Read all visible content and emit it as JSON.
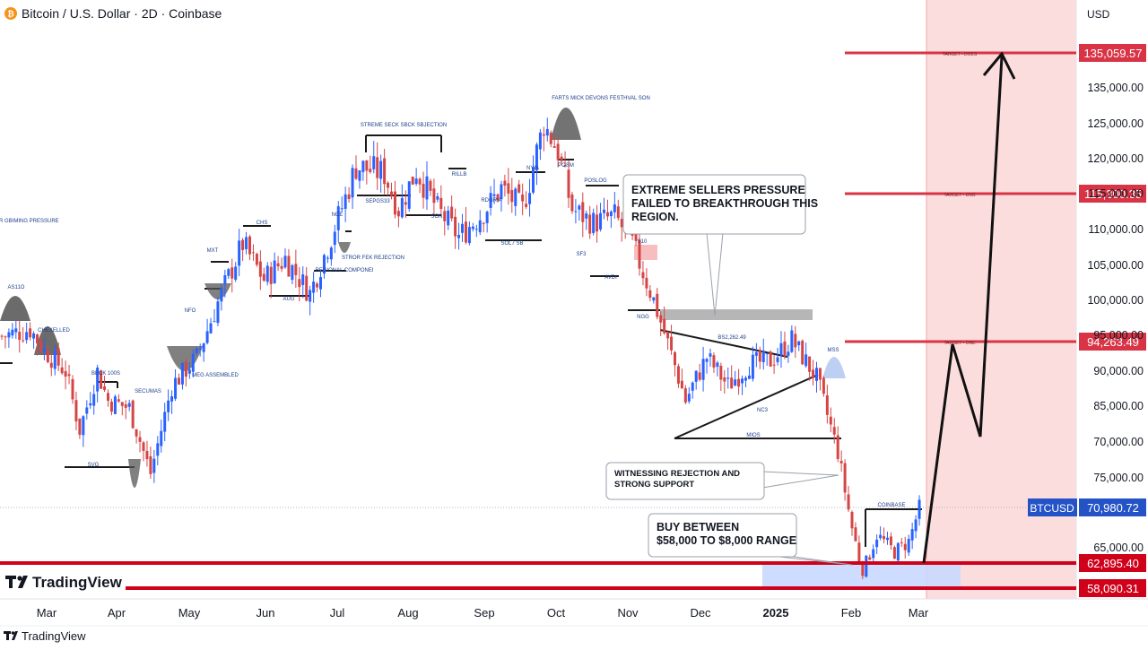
{
  "header": {
    "title": "Bitcoin / U.S. Dollar · 2D · Coinbase",
    "currency": "USD"
  },
  "branding": {
    "logo_text": "TradingView",
    "footer_text": "TradingView"
  },
  "colors": {
    "up": "#2962ff",
    "down": "#d64545",
    "resistance": "#d93445",
    "support": "#d0021b",
    "target_zone": "#fbd7d7",
    "buy_zone": "#c9d8ff",
    "price_tag": "#2453c7",
    "arrow": "#111111"
  },
  "chart_data": {
    "type": "candlestick",
    "symbol": "BTCUSD",
    "x_labels": [
      "Mar",
      "Apr",
      "May",
      "Jun",
      "Jul",
      "Aug",
      "Sep",
      "Oct",
      "Nov",
      "Dec",
      "2025",
      "Feb",
      "Mar"
    ],
    "y_ticks": [
      65000,
      70000,
      75000,
      85000,
      90000,
      95000,
      100000,
      105000,
      110000,
      115000,
      120000,
      125000,
      135000
    ],
    "last_price_label": "BTCUSD",
    "last_price": "70,980.72",
    "price_path": [
      {
        "i": 0,
        "p": 95000
      },
      {
        "i": 8,
        "p": 96000
      },
      {
        "i": 12,
        "p": 93000
      },
      {
        "i": 18,
        "p": 90000
      },
      {
        "i": 22,
        "p": 82000
      },
      {
        "i": 27,
        "p": 90000
      },
      {
        "i": 30,
        "p": 86000
      },
      {
        "i": 36,
        "p": 85000
      },
      {
        "i": 42,
        "p": 76000
      },
      {
        "i": 48,
        "p": 88000
      },
      {
        "i": 55,
        "p": 92000
      },
      {
        "i": 62,
        "p": 101000
      },
      {
        "i": 68,
        "p": 108000
      },
      {
        "i": 74,
        "p": 103000
      },
      {
        "i": 80,
        "p": 106000
      },
      {
        "i": 87,
        "p": 101000
      },
      {
        "i": 93,
        "p": 109000
      },
      {
        "i": 100,
        "p": 119000
      },
      {
        "i": 108,
        "p": 118000
      },
      {
        "i": 112,
        "p": 113000
      },
      {
        "i": 117,
        "p": 118500
      },
      {
        "i": 123,
        "p": 113000
      },
      {
        "i": 129,
        "p": 109000
      },
      {
        "i": 135,
        "p": 112000
      },
      {
        "i": 141,
        "p": 116000
      },
      {
        "i": 147,
        "p": 113000
      },
      {
        "i": 153,
        "p": 125000
      },
      {
        "i": 157,
        "p": 121000
      },
      {
        "i": 161,
        "p": 113000
      },
      {
        "i": 167,
        "p": 111000
      },
      {
        "i": 173,
        "p": 112000
      },
      {
        "i": 178,
        "p": 108000
      },
      {
        "i": 184,
        "p": 100000
      },
      {
        "i": 188,
        "p": 94000
      },
      {
        "i": 193,
        "p": 86000
      },
      {
        "i": 199,
        "p": 92000
      },
      {
        "i": 205,
        "p": 88000
      },
      {
        "i": 211,
        "p": 91000
      },
      {
        "i": 217,
        "p": 91500
      },
      {
        "i": 223,
        "p": 94500
      },
      {
        "i": 230,
        "p": 89000
      },
      {
        "i": 236,
        "p": 79000
      },
      {
        "i": 240,
        "p": 68000
      },
      {
        "i": 243,
        "p": 61500
      },
      {
        "i": 247,
        "p": 67000
      },
      {
        "i": 252,
        "p": 64500
      },
      {
        "i": 256,
        "p": 66000
      },
      {
        "i": 259,
        "p": 70980
      }
    ],
    "levels": [
      {
        "id": "target",
        "value": "135,059.57",
        "note": "TARGET - DOES"
      },
      {
        "id": "r2",
        "value": "115,300.35",
        "note": "TARGET - ENG"
      },
      {
        "id": "r1",
        "value": "94,263.49",
        "note": "TARGET - ONE"
      },
      {
        "id": "s1",
        "value": "62,895.40"
      },
      {
        "id": "s2",
        "value": "58,090.31"
      }
    ],
    "annotations": [
      {
        "id": "sellers",
        "text_lines": [
          "EXTREME SELLERS PRESSURE",
          "FAILED TO BREAKTHROUGH THIS",
          "REGION."
        ]
      },
      {
        "id": "rejection",
        "text_lines": [
          "WITNESSING REJECTION AND",
          "STRONG SUPPORT"
        ]
      },
      {
        "id": "buy",
        "text_lines": [
          "BUY BETWEEN",
          "$58,000 TO $8,000 RANGE"
        ]
      }
    ],
    "small_labels": [
      {
        "t": "GR GBIMING PRESSURE"
      },
      {
        "t": "AS11O"
      },
      {
        "t": "CHEXELLED"
      },
      {
        "t": "BECK 100S"
      },
      {
        "t": "SVG"
      },
      {
        "t": "SECUMAS"
      },
      {
        "t": "MEG ASSEMBLED"
      },
      {
        "t": "NFO"
      },
      {
        "t": "MXT"
      },
      {
        "t": "CHS"
      },
      {
        "t": "AUG"
      },
      {
        "t": "NCE"
      },
      {
        "t": "STROR FEK REJECTION"
      },
      {
        "t": "REGIONAL COMPONEI"
      },
      {
        "t": "STREME SECK SBCK SBJECTION"
      },
      {
        "t": "SEPGS33"
      },
      {
        "t": "SON"
      },
      {
        "t": "RILLB"
      },
      {
        "t": "RDGRIA"
      },
      {
        "t": "SOL7 SB"
      },
      {
        "t": "NYIA"
      },
      {
        "t": "FARTS MICK DEVONS FESTHVAL SON"
      },
      {
        "t": "POSM"
      },
      {
        "t": "POSLOG"
      },
      {
        "t": "SF3"
      },
      {
        "t": "AVDI"
      },
      {
        "t": "S10"
      },
      {
        "t": "NGG"
      },
      {
        "t": "BS2,262.49"
      },
      {
        "t": "NC3"
      },
      {
        "t": "MIOS"
      },
      {
        "t": "MSS"
      },
      {
        "t": "COINBASE"
      }
    ]
  }
}
